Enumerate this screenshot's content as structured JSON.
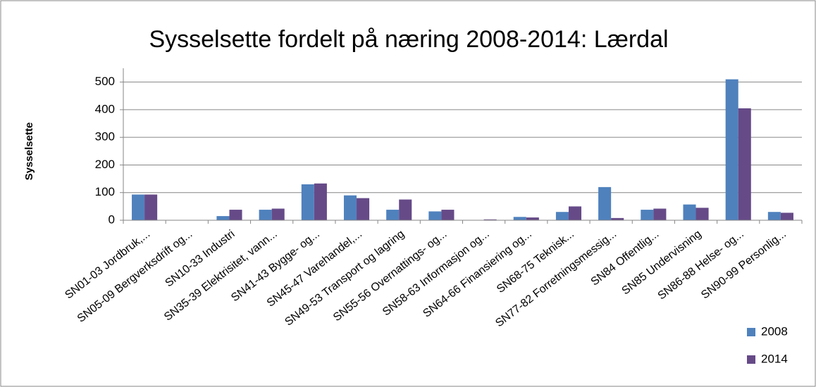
{
  "chart_data": {
    "type": "bar",
    "title": "Sysselsette fordelt på næring 2008-2014: Lærdal",
    "y_label": "Sysselsette",
    "categories": [
      "SN01-03 Jordbruk,...",
      "SN05-09 Bergverksdrift og...",
      "SN10-33 Industri",
      "SN35-39 Elektrisitet, vann...",
      "SN41-43 Bygge- og...",
      "SN45-47 Varehandel,...",
      "SN49-53 Transport og lagring",
      "SN55-56 Overnattings- og...",
      "SN58-63 Informasjon og...",
      "SN64-66 Finansiering og...",
      "SN68-75 Teknisk...",
      "SN77-82 Forretningsmessig...",
      "SN84 Offentlig...",
      "SN85 Undervisning",
      "SN86-88 Helse- og...",
      "SN90-99 Personlig..."
    ],
    "series": [
      {
        "name": "2008",
        "color": "#4f81bd",
        "values": [
          93,
          0,
          15,
          38,
          130,
          90,
          38,
          32,
          0,
          12,
          30,
          120,
          38,
          57,
          510,
          30
        ]
      },
      {
        "name": "2014",
        "color": "#664a88",
        "values": [
          93,
          0,
          38,
          42,
          133,
          80,
          75,
          38,
          3,
          10,
          50,
          8,
          42,
          45,
          405,
          27
        ]
      }
    ],
    "ylim": [
      0,
      550
    ],
    "yticks": [
      0,
      100,
      200,
      300,
      400,
      500
    ],
    "grid": true,
    "legend": "bottom-right"
  }
}
